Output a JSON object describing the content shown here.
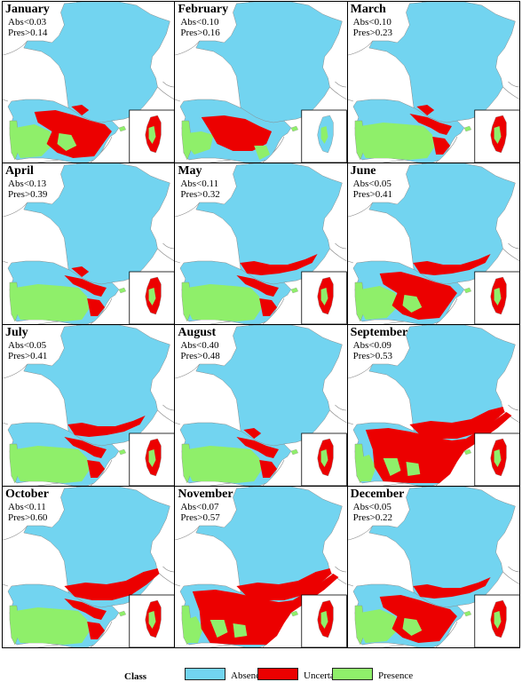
{
  "panels": [
    {
      "month": "January",
      "abs": "Abs<0.03",
      "pres": "Pres>0.14",
      "iberia": "mixed-red",
      "north": "low"
    },
    {
      "month": "February",
      "abs": "Abs<0.10",
      "pres": "Pres>0.16",
      "iberia": "mixed-blue",
      "north": "none"
    },
    {
      "month": "March",
      "abs": "Abs<0.10",
      "pres": "Pres>0.23",
      "iberia": "green-core",
      "north": "low"
    },
    {
      "month": "April",
      "abs": "Abs<0.13",
      "pres": "Pres>0.39",
      "iberia": "green-core",
      "north": "low"
    },
    {
      "month": "May",
      "abs": "Abs<0.11",
      "pres": "Pres>0.32",
      "iberia": "green-core",
      "north": "mid"
    },
    {
      "month": "June",
      "abs": "Abs<0.05",
      "pres": "Pres>0.41",
      "iberia": "mixed-red",
      "north": "mid"
    },
    {
      "month": "July",
      "abs": "Abs<0.05",
      "pres": "Pres>0.41",
      "iberia": "green-core",
      "north": "mid"
    },
    {
      "month": "August",
      "abs": "Abs<0.40",
      "pres": "Pres>0.48",
      "iberia": "green-core",
      "north": "low"
    },
    {
      "month": "September",
      "abs": "Abs<0.09",
      "pres": "Pres>0.53",
      "iberia": "heavy-red",
      "north": "high"
    },
    {
      "month": "October",
      "abs": "Abs<0.11",
      "pres": "Pres>0.60",
      "iberia": "green-core",
      "north": "high"
    },
    {
      "month": "November",
      "abs": "Abs<0.07",
      "pres": "Pres>0.57",
      "iberia": "heavy-red",
      "north": "high"
    },
    {
      "month": "December",
      "abs": "Abs<0.05",
      "pres": "Pres>0.22",
      "iberia": "mixed-red",
      "north": "mid"
    }
  ],
  "legend": {
    "title": "Class",
    "items": [
      {
        "label": "Absence",
        "color": "#72d4f0"
      },
      {
        "label": "Uncertain",
        "color": "#ec0000"
      },
      {
        "label": "Presence",
        "color": "#8fef6a"
      }
    ]
  },
  "colors": {
    "absence": "#72d4f0",
    "uncertain": "#ec0000",
    "presence": "#8fef6a",
    "border": "#8a8a8a"
  }
}
